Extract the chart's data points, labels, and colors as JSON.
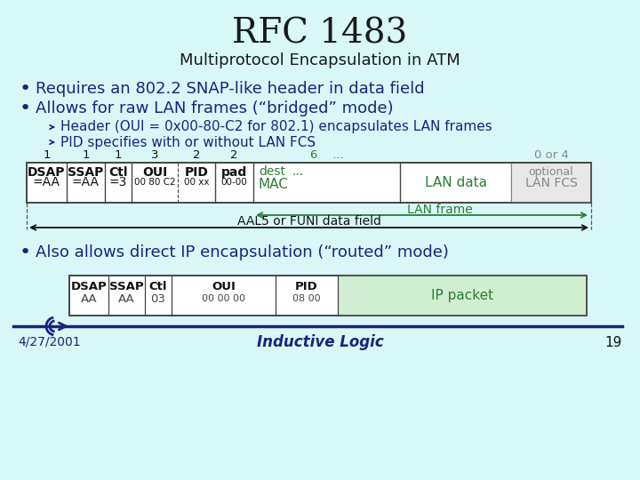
{
  "bg_color": "#d8f8f8",
  "title": "RFC 1483",
  "subtitle": "Multiprotocol Encapsulation in ATM",
  "title_color": "#1a1a1a",
  "subtitle_color": "#1a1a1a",
  "bullet_color": "#1a237e",
  "green_color": "#2e7d32",
  "gray_color": "#888888",
  "bullet_points": [
    "Requires an 802.2 SNAP-like header in data field",
    "Allows for raw LAN frames (“bridged” mode)"
  ],
  "sub_bullets": [
    "Header (OUI = 0x00-80-C2 for 802.1) encapsulates LAN frames",
    "PID specifies with or without LAN FCS"
  ],
  "third_bullet": "Also allows direct IP encapsulation (“routed” mode)",
  "box_outline": "#444444",
  "footer_date": "4/27/2001",
  "footer_brand": "Inductive Logic",
  "footer_page": "19",
  "footer_color": "#1a237e",
  "line_color": "#1a237e"
}
